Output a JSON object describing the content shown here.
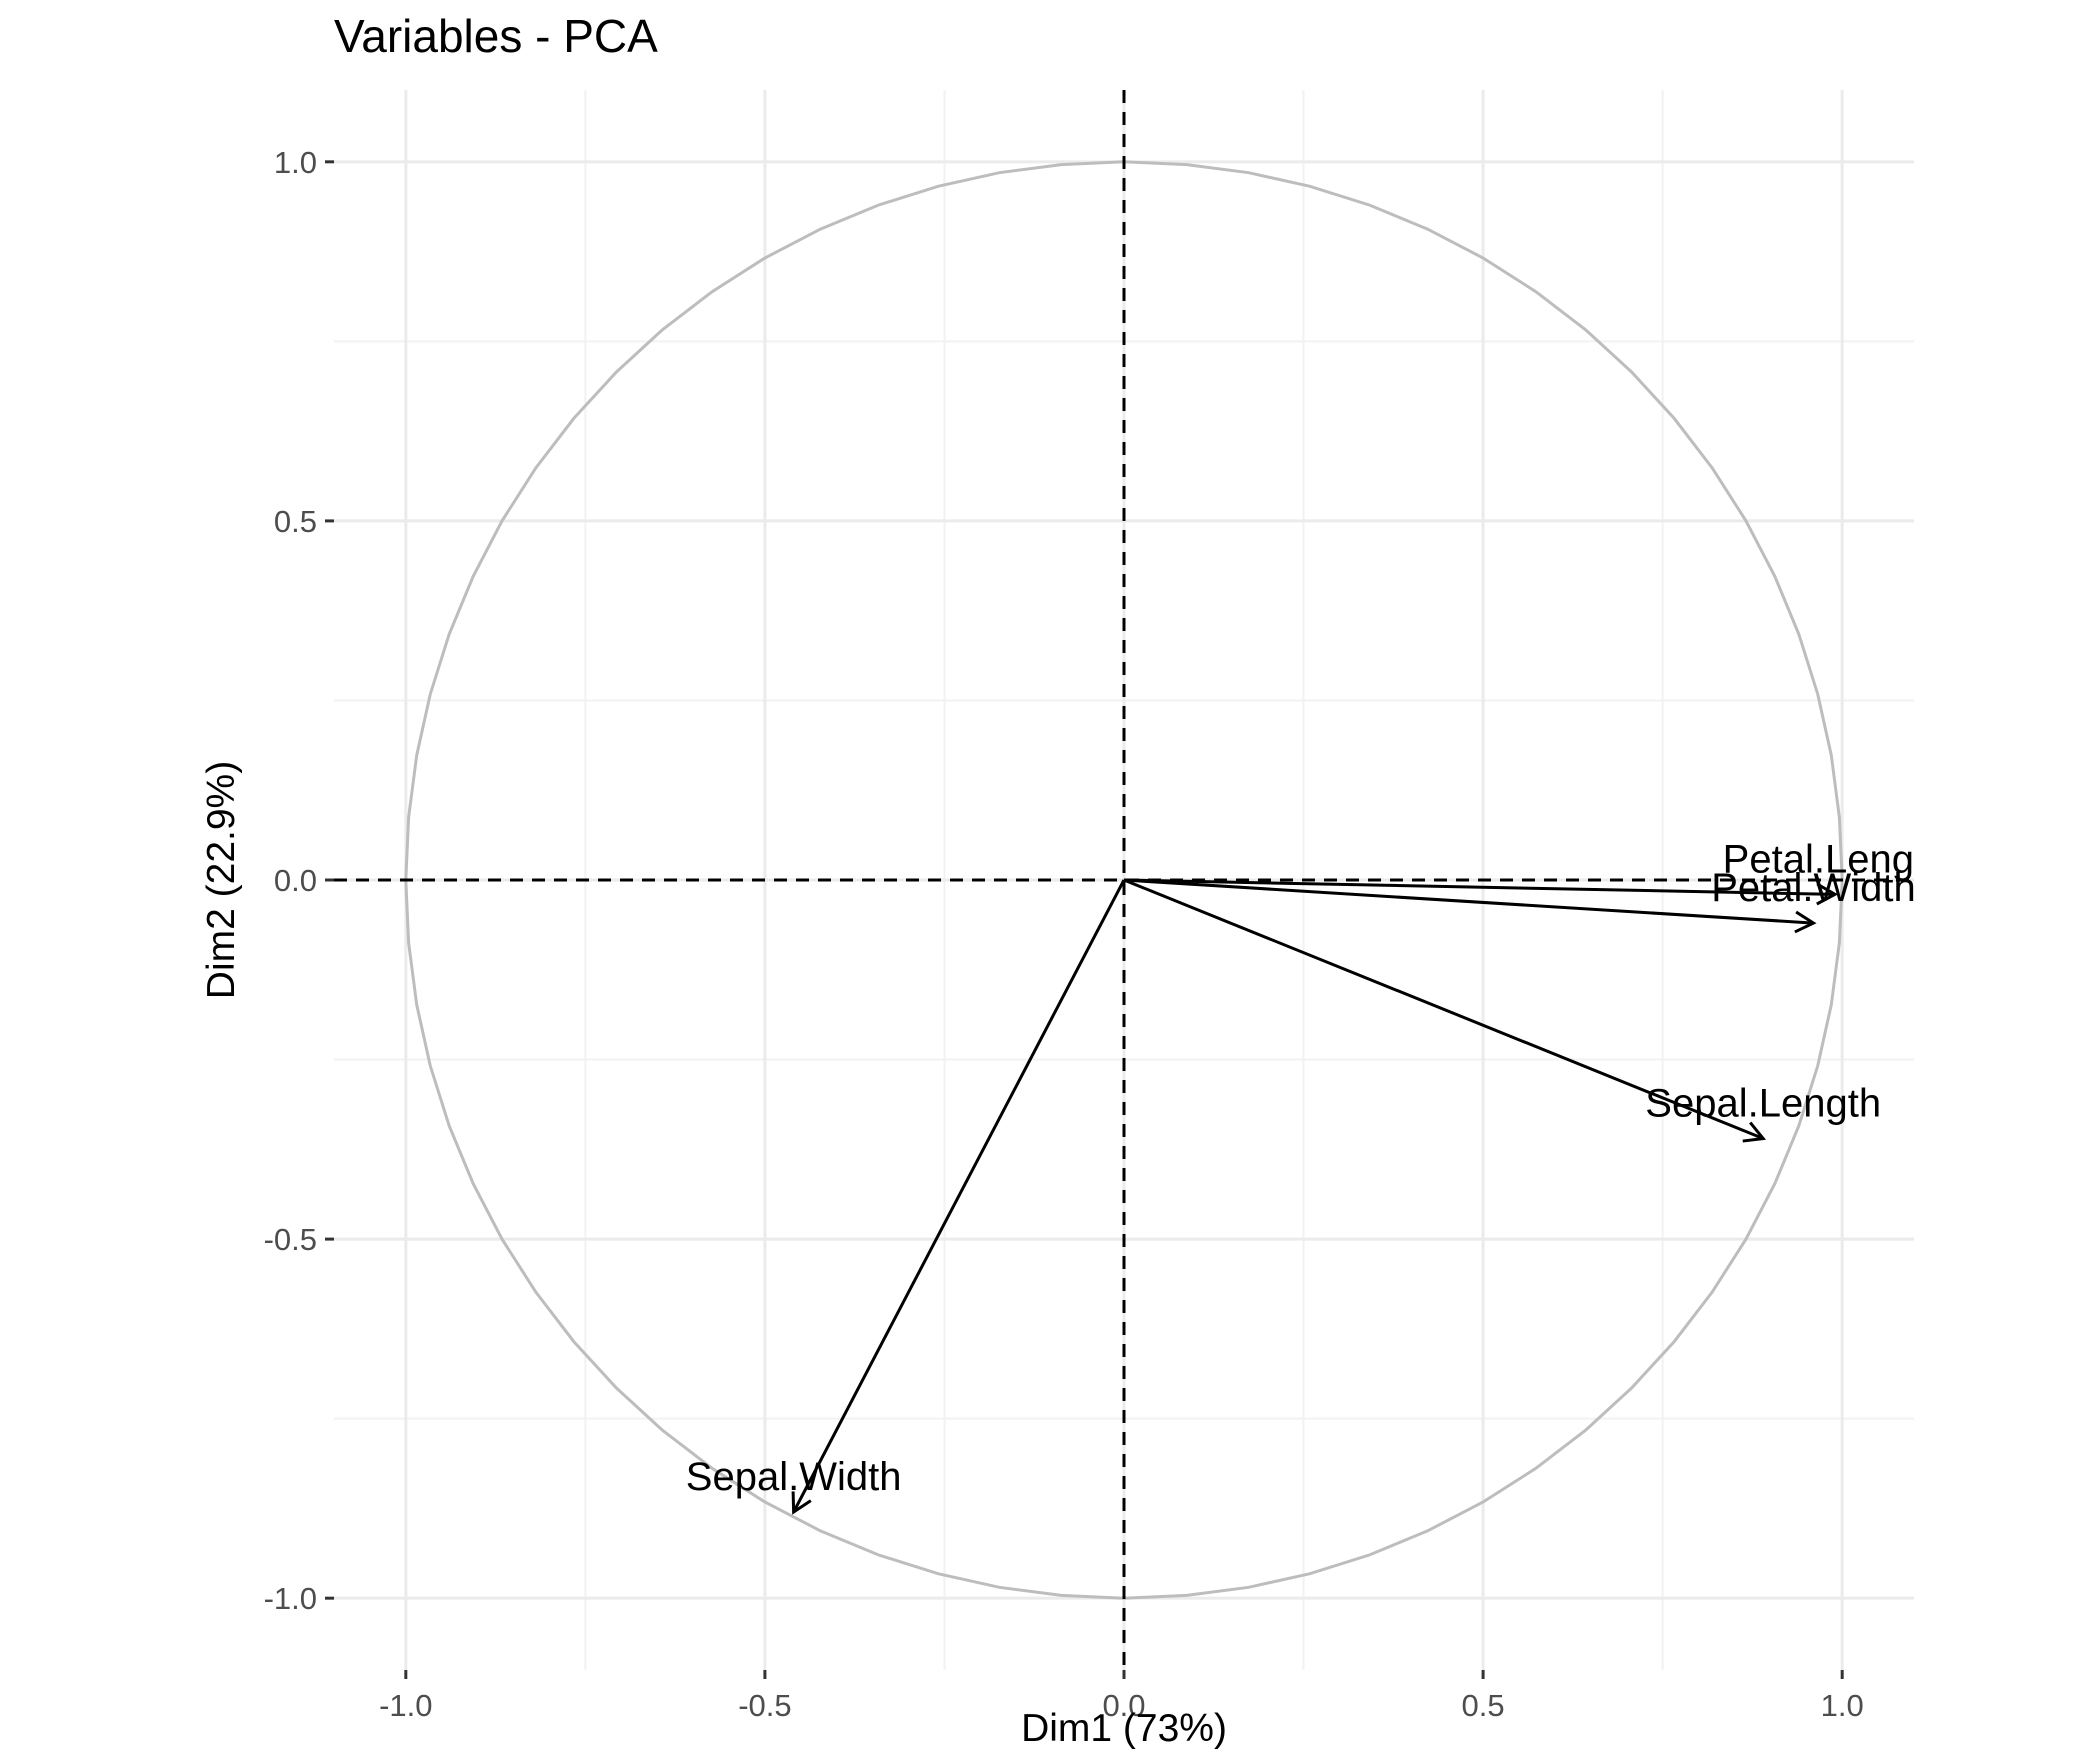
{
  "chart_data": {
    "type": "scatter",
    "subtype": "pca-correlation-circle",
    "title": "Variables - PCA",
    "xlabel": "Dim1 (73%)",
    "ylabel": "Dim2 (22.9%)",
    "xlim": [
      -1.1,
      1.1
    ],
    "ylim": [
      -1.1,
      1.1
    ],
    "x_ticks": [
      -1.0,
      -0.5,
      0.0,
      0.5,
      1.0
    ],
    "x_tick_labels": [
      "-1.0",
      "-0.5",
      "0.0",
      "0.5",
      "1.0"
    ],
    "y_ticks": [
      -1.0,
      -0.5,
      0.0,
      0.5,
      1.0
    ],
    "y_tick_labels": [
      "-1.0",
      "-0.5",
      "0.0",
      "0.5",
      "1.0"
    ],
    "grid": true,
    "reference_lines": {
      "x": 0,
      "y": 0,
      "style": "dashed"
    },
    "circle_radius": 1.0,
    "variables": [
      {
        "name": "Petal.Length",
        "x": 0.99,
        "y": -0.02
      },
      {
        "name": "Petal.Width",
        "x": 0.96,
        "y": -0.06
      },
      {
        "name": "Sepal.Length",
        "x": 0.89,
        "y": -0.36
      },
      {
        "name": "Sepal.Width",
        "x": -0.46,
        "y": -0.88
      }
    ]
  },
  "colors": {
    "background": "#ffffff",
    "grid": "#ebebeb",
    "circle": "#bdbdbd",
    "arrow": "#000000",
    "tick_label": "#4d4d4d"
  }
}
